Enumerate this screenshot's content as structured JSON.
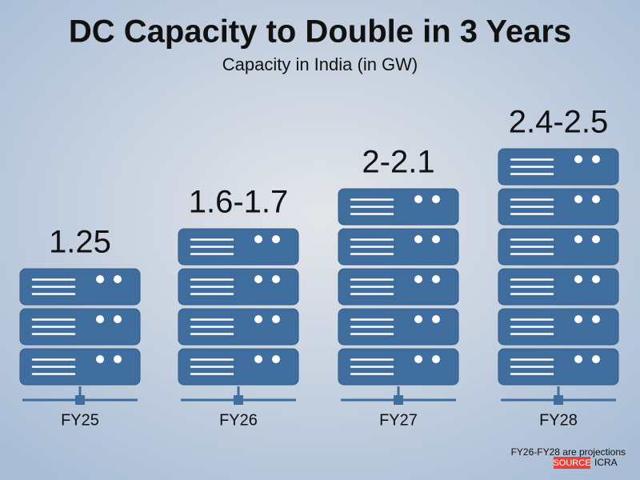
{
  "chart_data": {
    "type": "server-stack",
    "title": "DC Capacity to Double in 3 Years",
    "subtitle": "Capacity in India (in GW)",
    "categories": [
      "FY25",
      "FY26",
      "FY27",
      "FY28"
    ],
    "low": [
      1.25,
      1.6,
      2,
      2.4
    ],
    "high": [
      1.25,
      1.7,
      2.1,
      2.5
    ],
    "value_labels": [
      "1.25",
      "1.6-1.7",
      "2-2.1",
      "2.4-2.5"
    ],
    "color": "#3f6e9e",
    "note": "FY26-FY28 are projections",
    "source_label": "SOURCE",
    "source": "ICRA"
  }
}
